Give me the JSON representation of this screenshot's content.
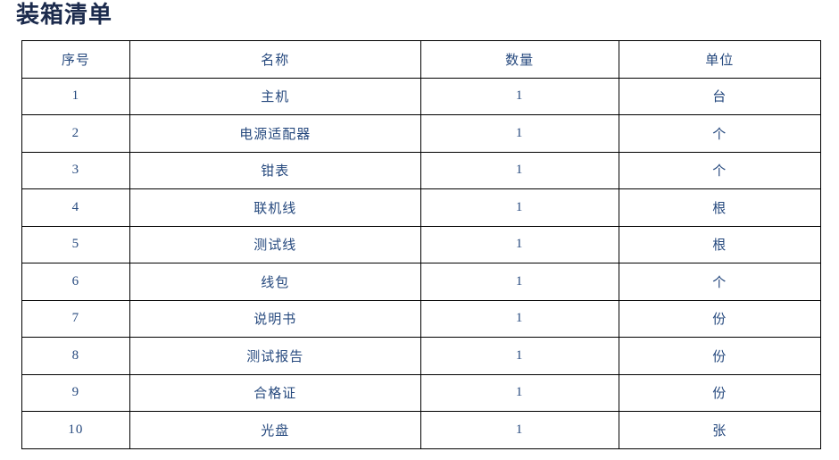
{
  "page": {
    "title": "装箱清单"
  },
  "table": {
    "headers": [
      "序号",
      "名称",
      "数量",
      "单位"
    ],
    "rows": [
      {
        "index": "1",
        "name": "主机",
        "quantity": "1",
        "unit": "台"
      },
      {
        "index": "2",
        "name": "电源适配器",
        "quantity": "1",
        "unit": "个"
      },
      {
        "index": "3",
        "name": "钳表",
        "quantity": "1",
        "unit": "个"
      },
      {
        "index": "4",
        "name": "联机线",
        "quantity": "1",
        "unit": "根"
      },
      {
        "index": "5",
        "name": "测试线",
        "quantity": "1",
        "unit": "根"
      },
      {
        "index": "6",
        "name": "线包",
        "quantity": "1",
        "unit": "个"
      },
      {
        "index": "7",
        "name": "说明书",
        "quantity": "1",
        "unit": "份"
      },
      {
        "index": "8",
        "name": "测试报告",
        "quantity": "1",
        "unit": "份"
      },
      {
        "index": "9",
        "name": "合格证",
        "quantity": "1",
        "unit": "份"
      },
      {
        "index": "10",
        "name": "光盘",
        "quantity": "1",
        "unit": "张"
      }
    ]
  },
  "colors": {
    "background": "#ffffff",
    "border": "#000000",
    "cell_text": "#26497e",
    "title_text": "#1c2b4d"
  }
}
